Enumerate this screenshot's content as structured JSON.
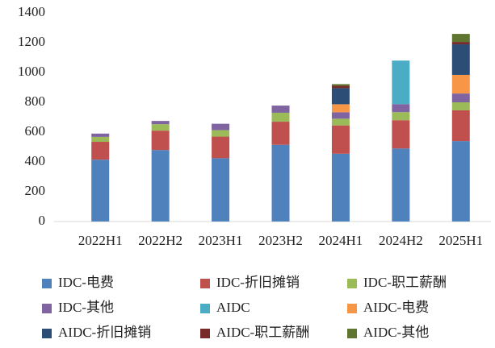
{
  "chart_data": {
    "type": "bar",
    "stacked": true,
    "categories": [
      "2022H1",
      "2022H2",
      "2023H1",
      "2023H2",
      "2024H1",
      "2024H2",
      "2025H1"
    ],
    "series": [
      {
        "name": "IDC-电费",
        "color": "#4f81bd",
        "values": [
          415,
          480,
          425,
          515,
          455,
          490,
          540
        ]
      },
      {
        "name": "IDC-折旧摊销",
        "color": "#c0504d",
        "values": [
          120,
          130,
          145,
          155,
          190,
          190,
          206
        ]
      },
      {
        "name": "IDC-职工薪酬",
        "color": "#9bbb59",
        "values": [
          33,
          43,
          43,
          60,
          45,
          54,
          54
        ]
      },
      {
        "name": "IDC-其他",
        "color": "#8064a2",
        "values": [
          22,
          22,
          43,
          48,
          43,
          54,
          59
        ]
      },
      {
        "name": "AIDC",
        "color": "#4bacc6",
        "values": [
          0,
          0,
          0,
          0,
          0,
          292,
          0
        ]
      },
      {
        "name": "AIDC-电费",
        "color": "#f79646",
        "values": [
          0,
          0,
          0,
          0,
          54,
          0,
          125
        ]
      },
      {
        "name": "AIDC-折旧摊销",
        "color": "#2c4d75",
        "values": [
          0,
          0,
          0,
          0,
          108,
          0,
          205
        ]
      },
      {
        "name": "AIDC-职工薪酬",
        "color": "#772c2a",
        "values": [
          0,
          0,
          0,
          0,
          16,
          0,
          16
        ]
      },
      {
        "name": "AIDC-其他",
        "color": "#5f7530",
        "values": [
          0,
          0,
          0,
          0,
          11,
          0,
          54
        ]
      }
    ],
    "ylim": [
      0,
      1400
    ],
    "yticks": [
      0,
      200,
      400,
      600,
      800,
      1000,
      1200,
      1400
    ],
    "grid": false,
    "legend": "bottom"
  }
}
